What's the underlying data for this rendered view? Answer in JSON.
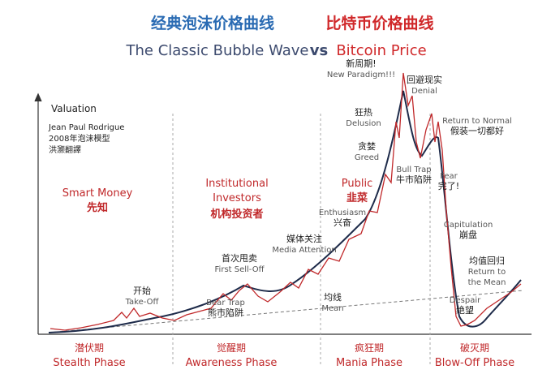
{
  "header": {
    "title_cn_left": "经典泡沫价格曲线",
    "title_cn_right": "比特币价格曲线",
    "subtitle_left": "The Classic Bubble Wave",
    "subtitle_vs": "vs",
    "subtitle_right": "Bitcoin Price"
  },
  "axis_label": "Valuation",
  "credits": [
    "Jean Paul Rodrigue",
    "2008年泡沫模型",
    "洪灏翻譯"
  ],
  "investors": [
    {
      "en": "Smart Money",
      "cn": "先知"
    },
    {
      "en": "Institutional",
      "en2": "Investors",
      "cn": "机构投资者"
    },
    {
      "en": "Public",
      "cn": "韭菜"
    }
  ],
  "phases": [
    {
      "cn": "潜伏期",
      "en": "Stealth Phase"
    },
    {
      "cn": "觉醒期",
      "en": "Awareness Phase"
    },
    {
      "cn": "疯狂期",
      "en": "Mania Phase"
    },
    {
      "cn": "破灭期",
      "en": "Blow-Off Phase"
    }
  ],
  "annotations": [
    {
      "cn": "开始",
      "en": "Take-Off"
    },
    {
      "cn": "首次甩卖",
      "en": "First Sell-Off"
    },
    {
      "en": "Bear Trap",
      "cn": "熊市陷阱"
    },
    {
      "cn": "媒体关注",
      "en": "Media Attention"
    },
    {
      "en": "Enthusiasm",
      "cn": "兴奋"
    },
    {
      "cn": "贪婪",
      "en": "Greed"
    },
    {
      "cn": "狂热",
      "en": "Delusion"
    },
    {
      "cn": "新周期!",
      "en": "New Paradigm!!!"
    },
    {
      "cn": "回避现实",
      "en": "Denial"
    },
    {
      "en": "Return to Normal",
      "cn": "假装一切都好"
    },
    {
      "en": "Bull Trap",
      "cn": "牛市陷阱"
    },
    {
      "en": "Fear",
      "cn": "完了!"
    },
    {
      "en": "Capitulation",
      "cn": "崩盘"
    },
    {
      "cn": "均值回归",
      "en": "Return to",
      "en2": "the Mean"
    },
    {
      "en": "Despair",
      "cn": "绝望"
    },
    {
      "cn": "均线",
      "en": "Mean"
    }
  ]
}
